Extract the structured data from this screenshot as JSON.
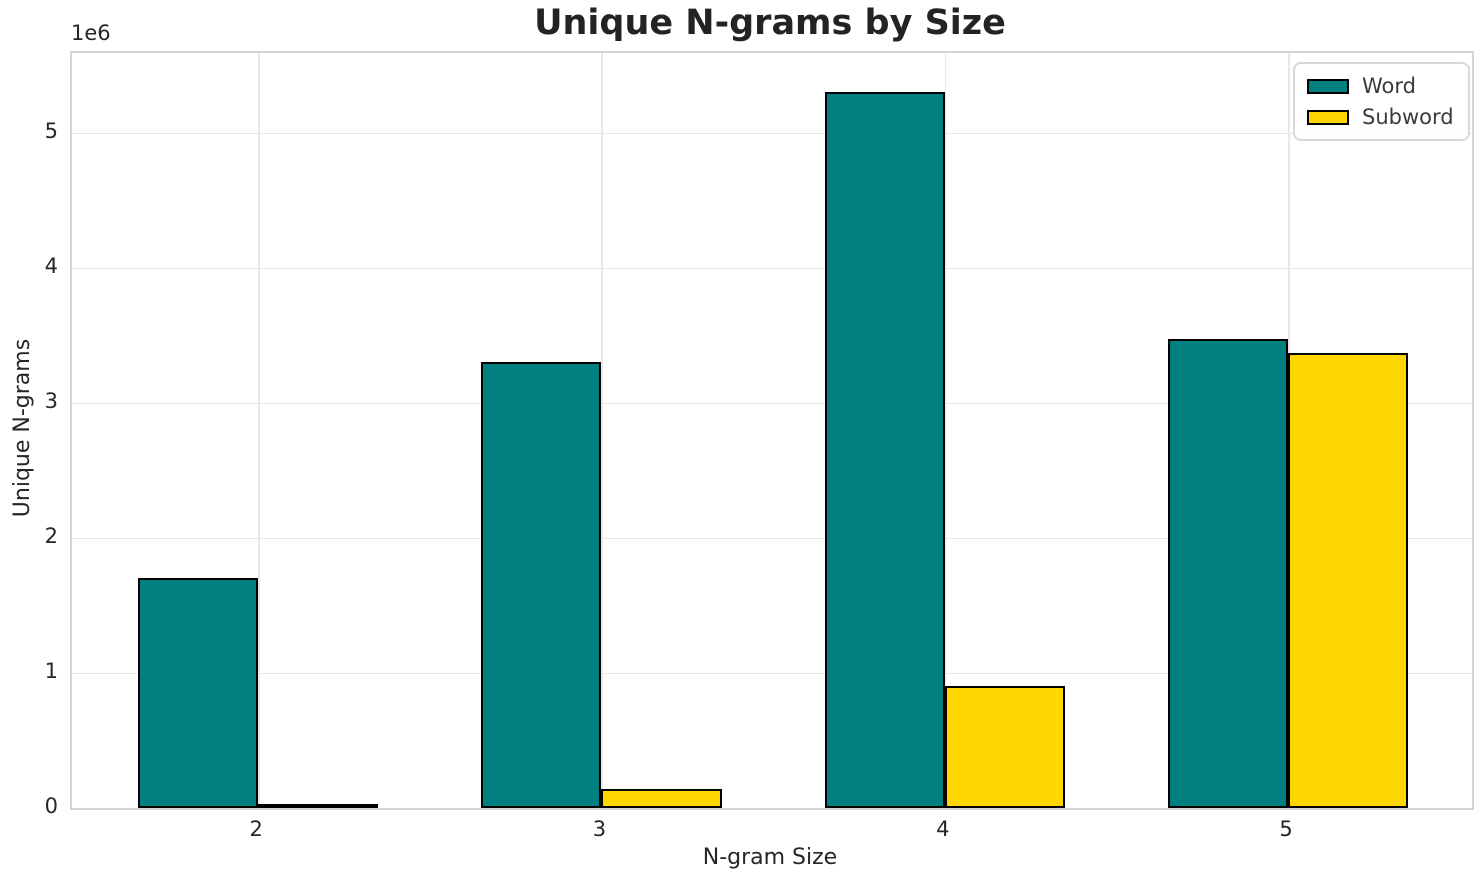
{
  "chart_data": {
    "type": "bar",
    "title": "Unique N-grams by Size",
    "xlabel": "N-gram Size",
    "ylabel": "Unique N-grams",
    "y_offset_label": "1e6",
    "categories": [
      "2",
      "3",
      "4",
      "5"
    ],
    "series": [
      {
        "name": "Word",
        "color": "#008080",
        "values": [
          1700000,
          3300000,
          5300000,
          3470000
        ]
      },
      {
        "name": "Subword",
        "color": "#FFD700",
        "values": [
          20000,
          140000,
          900000,
          3370000
        ]
      }
    ],
    "bar_edge_color": "#000000",
    "bar_width": 0.35,
    "ylim": [
      0,
      5590000
    ],
    "y_ticks": [
      0,
      1000000,
      2000000,
      3000000,
      4000000,
      5000000
    ],
    "y_tick_labels": [
      "0",
      "1",
      "2",
      "3",
      "4",
      "5"
    ],
    "grid": true,
    "legend_position": "upper right"
  }
}
